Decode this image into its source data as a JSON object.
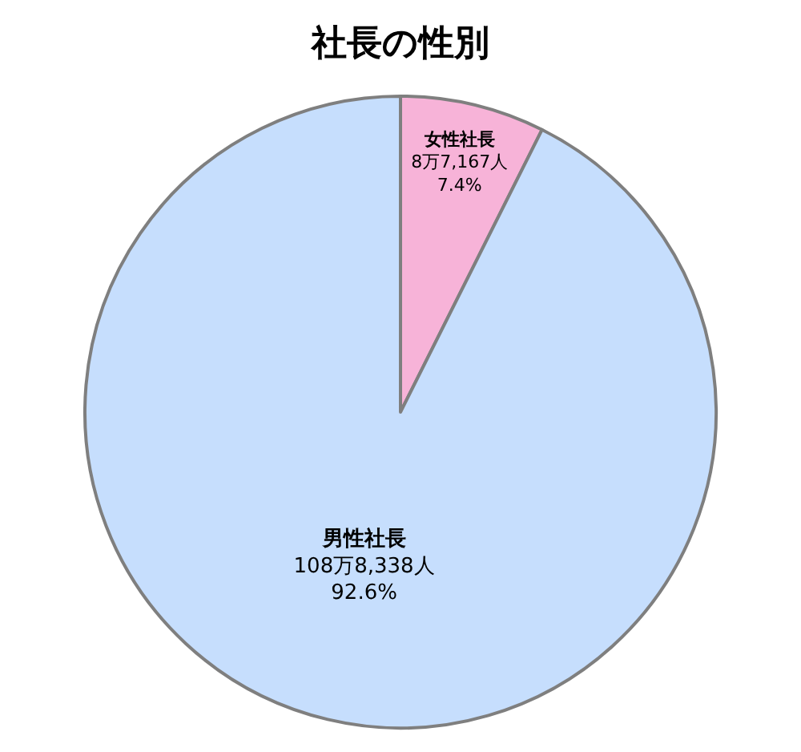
{
  "chart_data": {
    "type": "pie",
    "title": "社長の性別",
    "categories": [
      "女性社長",
      "男性社長"
    ],
    "values": [
      7.4,
      92.6
    ],
    "colors": [
      "#f7b3d8",
      "#c6defd"
    ],
    "value_labels": [
      "8万7,167人\n7.4%",
      "108万8,338人\n92.6%"
    ],
    "legend": false
  }
}
